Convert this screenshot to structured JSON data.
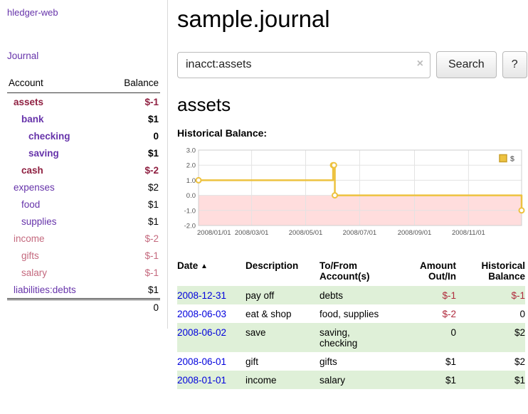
{
  "sidebar": {
    "app_title": "hledger-web",
    "journal_link": "Journal",
    "account_header": "Account",
    "balance_header": "Balance",
    "accounts": [
      {
        "name": "assets",
        "balance": "$-1"
      },
      {
        "name": "bank",
        "balance": "$1"
      },
      {
        "name": "checking",
        "balance": "0"
      },
      {
        "name": "saving",
        "balance": "$1"
      },
      {
        "name": "cash",
        "balance": "$-2"
      },
      {
        "name": "expenses",
        "balance": "$2"
      },
      {
        "name": "food",
        "balance": "$1"
      },
      {
        "name": "supplies",
        "balance": "$1"
      },
      {
        "name": "income",
        "balance": "$-2"
      },
      {
        "name": "gifts",
        "balance": "$-1"
      },
      {
        "name": "salary",
        "balance": "$-1"
      },
      {
        "name": "liabilities:debts",
        "balance": "$1"
      }
    ],
    "total": "0"
  },
  "main": {
    "title": "sample.journal",
    "search": {
      "value": "inacct:assets",
      "clear_icon": "×",
      "button_label": "Search",
      "help_label": "?"
    },
    "account_heading": "assets",
    "chart_title": "Historical Balance:",
    "register": {
      "sort_icon": "▲",
      "col_date": "Date",
      "col_description": "Description",
      "col_accounts": "To/From Account(s)",
      "col_amount": "Amount Out/In",
      "col_balance": "Historical Balance",
      "rows": [
        {
          "date": "2008-12-31",
          "description": "pay off",
          "accounts": "debts",
          "amount": "$-1",
          "balance": "$-1"
        },
        {
          "date": "2008-06-03",
          "description": "eat & shop",
          "accounts": "food, supplies",
          "amount": "$-2",
          "balance": "0"
        },
        {
          "date": "2008-06-02",
          "description": "save",
          "accounts": "saving, checking",
          "amount": "0",
          "balance": "$2"
        },
        {
          "date": "2008-06-01",
          "description": "gift",
          "accounts": "gifts",
          "amount": "$1",
          "balance": "$2"
        },
        {
          "date": "2008-01-01",
          "description": "income",
          "accounts": "salary",
          "amount": "$1",
          "balance": "$1"
        }
      ]
    }
  },
  "colors": {
    "link_purple": "#6633aa",
    "link_blue": "#0000dd",
    "negative_red": "#b02a3c",
    "negative_strong": "#8f2041",
    "negative_muted": "#c4697e",
    "row_green": "#dff0d8",
    "chart_line": "#edc240",
    "chart_negative_region": "#ffdddd"
  },
  "chart_data": {
    "type": "line",
    "title": "Historical Balance",
    "step": true,
    "x_range": [
      "2008-01-01",
      "2008-12-31"
    ],
    "y_range": [
      -2,
      3
    ],
    "y_ticks": [
      3.0,
      2.0,
      1.0,
      0.0,
      -1.0,
      -2.0
    ],
    "x_tick_labels": [
      "2008/01/01",
      "2008/03/01",
      "2008/05/01",
      "2008/07/01",
      "2008/09/01",
      "2008/11/01"
    ],
    "negative_region_color": "#ffdddd",
    "grid": true,
    "legend": {
      "label": "$",
      "position": "top-right"
    },
    "series": [
      {
        "name": "$",
        "color": "#edc240",
        "points": [
          [
            "2008-01-01",
            1
          ],
          [
            "2008-06-01",
            2
          ],
          [
            "2008-06-02",
            2
          ],
          [
            "2008-06-03",
            0
          ],
          [
            "2008-12-31",
            -1
          ]
        ]
      }
    ]
  }
}
